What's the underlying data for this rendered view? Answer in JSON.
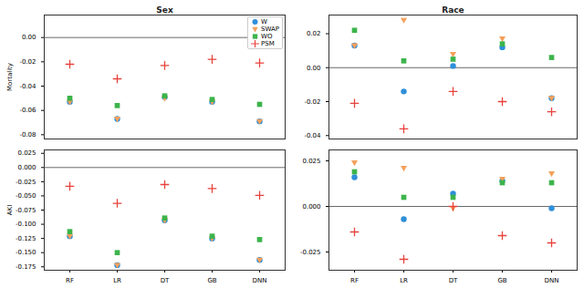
{
  "chart_data": [
    {
      "type": "scatter",
      "title": "Sex",
      "y_label": "Mortality",
      "categories": [
        "RF",
        "LR",
        "DT",
        "GB",
        "DNN"
      ],
      "series": [
        {
          "name": "W",
          "color": "#2f8fd8",
          "marker": "circle",
          "values": [
            -0.053,
            -0.067,
            -0.049,
            -0.053,
            -0.069
          ]
        },
        {
          "name": "SWAP",
          "color": "#f5a05a",
          "marker": "triangle-down",
          "values": [
            -0.053,
            -0.067,
            -0.05,
            -0.053,
            -0.069
          ]
        },
        {
          "name": "WO",
          "color": "#3cb44b",
          "marker": "square",
          "values": [
            -0.05,
            -0.056,
            -0.048,
            -0.051,
            -0.055
          ]
        },
        {
          "name": "PSM",
          "color": "#e8423c",
          "marker": "plus",
          "values": [
            -0.022,
            -0.034,
            -0.023,
            -0.018,
            -0.021
          ]
        }
      ],
      "ylim": [
        -0.0835,
        0.0185
      ],
      "yticks": [
        {
          "value": -0.08,
          "label": "-0.08"
        },
        {
          "value": -0.06,
          "label": "-0.06"
        },
        {
          "value": -0.04,
          "label": "-0.04"
        },
        {
          "value": -0.02,
          "label": "-0.02"
        },
        {
          "value": 0,
          "label": "0.00"
        }
      ],
      "hline": 0,
      "legend": "upper right",
      "tick_labels": "y"
    },
    {
      "type": "scatter",
      "title": "Race",
      "categories": [
        "RF",
        "LR",
        "DT",
        "GB",
        "DNN"
      ],
      "series": [
        {
          "name": "W",
          "color": "#2f8fd8",
          "marker": "circle",
          "values": [
            0.013,
            -0.014,
            0.001,
            0.012,
            -0.018
          ]
        },
        {
          "name": "SWAP",
          "color": "#f5a05a",
          "marker": "triangle-down",
          "values": [
            0.013,
            0.028,
            0.008,
            0.017,
            -0.018
          ]
        },
        {
          "name": "WO",
          "color": "#3cb44b",
          "marker": "square",
          "values": [
            0.022,
            0.004,
            0.005,
            0.014,
            0.006
          ]
        },
        {
          "name": "PSM",
          "color": "#e8423c",
          "marker": "plus",
          "values": [
            -0.021,
            -0.036,
            -0.014,
            -0.02,
            -0.026
          ]
        }
      ],
      "ylim": [
        -0.042,
        0.031
      ],
      "yticks": [
        {
          "value": -0.04,
          "label": "-0.04"
        },
        {
          "value": -0.02,
          "label": "-0.02"
        },
        {
          "value": 0,
          "label": "0.00"
        },
        {
          "value": 0.02,
          "label": "0.02"
        }
      ],
      "hline": 0,
      "tick_labels": "y"
    },
    {
      "type": "scatter",
      "y_label": "AKI",
      "categories": [
        "RF",
        "LR",
        "DT",
        "GB",
        "DNN"
      ],
      "series": [
        {
          "name": "W",
          "color": "#2f8fd8",
          "marker": "circle",
          "values": [
            -0.121,
            -0.172,
            -0.093,
            -0.125,
            -0.163
          ]
        },
        {
          "name": "SWAP",
          "color": "#f5a05a",
          "marker": "triangle-down",
          "values": [
            -0.121,
            -0.172,
            -0.093,
            -0.125,
            -0.163
          ]
        },
        {
          "name": "WO",
          "color": "#3cb44b",
          "marker": "square",
          "values": [
            -0.113,
            -0.15,
            -0.089,
            -0.121,
            -0.127
          ]
        },
        {
          "name": "PSM",
          "color": "#e8423c",
          "marker": "plus",
          "values": [
            -0.033,
            -0.063,
            -0.03,
            -0.037,
            -0.049
          ]
        }
      ],
      "ylim": [
        -0.181,
        0.031
      ],
      "yticks": [
        {
          "value": -0.175,
          "label": "-0.175"
        },
        {
          "value": -0.15,
          "label": "-0.150"
        },
        {
          "value": -0.125,
          "label": "-0.125"
        },
        {
          "value": -0.1,
          "label": "-0.100"
        },
        {
          "value": -0.075,
          "label": "-0.075"
        },
        {
          "value": -0.05,
          "label": "-0.050"
        },
        {
          "value": -0.025,
          "label": "-0.025"
        },
        {
          "value": 0,
          "label": "0.000"
        },
        {
          "value": 0.025,
          "label": "0.025"
        }
      ],
      "hline": 0
    },
    {
      "type": "scatter",
      "categories": [
        "RF",
        "LR",
        "DT",
        "GB",
        "DNN"
      ],
      "series": [
        {
          "name": "W",
          "color": "#2f8fd8",
          "marker": "circle",
          "values": [
            0.016,
            -0.007,
            0.007,
            0.014,
            -0.001
          ]
        },
        {
          "name": "SWAP",
          "color": "#f5a05a",
          "marker": "triangle-down",
          "values": [
            0.024,
            0.021,
            -0.001,
            0.015,
            0.018
          ]
        },
        {
          "name": "WO",
          "color": "#3cb44b",
          "marker": "square",
          "values": [
            0.019,
            0.005,
            0.005,
            0.013,
            0.013
          ]
        },
        {
          "name": "PSM",
          "color": "#e8423c",
          "marker": "plus",
          "values": [
            -0.014,
            -0.029,
            0.0,
            -0.016,
            -0.02
          ]
        }
      ],
      "ylim": [
        -0.035,
        0.031
      ],
      "yticks": [
        {
          "value": -0.025,
          "label": "-0.025"
        },
        {
          "value": 0,
          "label": "0.000"
        },
        {
          "value": 0.025,
          "label": "0.025"
        }
      ],
      "hline": 0
    }
  ]
}
